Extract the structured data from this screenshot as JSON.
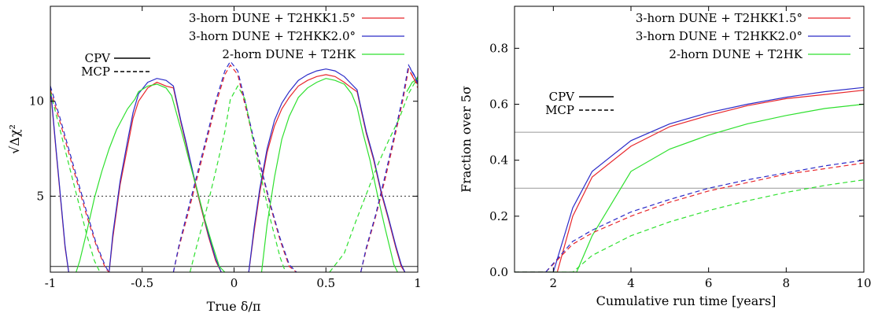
{
  "chart_data": [
    {
      "type": "line",
      "xlabel": "True δ/π",
      "ylabel": "√Δχ²",
      "xlim": [
        -1,
        1
      ],
      "ylim": [
        1,
        15
      ],
      "xticks": [
        "-1",
        "-0.5",
        "0",
        "0.5",
        "1"
      ],
      "yticks": [
        "5",
        "10"
      ],
      "grid": false,
      "legend_placement": "top-right",
      "style_key": {
        "solid": "CPV",
        "dashed": "MCP"
      },
      "reference_lines": [
        {
          "y": 5,
          "style": "dotted"
        },
        {
          "y": 1.3,
          "style": "solid"
        }
      ],
      "series": [
        {
          "name": "3-horn DUNE + T2HKK1.5°",
          "color": "#e8262b",
          "style": "solid",
          "x": [
            -1,
            -0.97,
            -0.94,
            -0.92,
            -0.9,
            null,
            -0.68,
            -0.66,
            -0.62,
            -0.58,
            -0.55,
            -0.52,
            -0.47,
            -0.42,
            -0.37,
            -0.33,
            -0.31,
            -0.29,
            -0.26,
            -0.22,
            -0.18,
            -0.14,
            -0.1,
            -0.07,
            null,
            0.08,
            0.11,
            0.14,
            0.18,
            0.22,
            0.26,
            0.3,
            0.35,
            0.4,
            0.45,
            0.5,
            0.55,
            0.6,
            0.64,
            0.67,
            0.69,
            0.72,
            0.76,
            0.8,
            0.84,
            0.88,
            0.91,
            0.93,
            null,
            0.96,
            0.99,
            1
          ],
          "y": [
            10.7,
            7.5,
            4.4,
            2.3,
            1,
            null,
            1,
            2.8,
            5.6,
            7.6,
            9.1,
            10.0,
            10.7,
            11.0,
            10.8,
            10.7,
            9.8,
            8.9,
            7.7,
            6.0,
            4.4,
            2.9,
            1.6,
            1,
            null,
            1,
            3.2,
            5.2,
            7.3,
            8.7,
            9.6,
            10.2,
            10.8,
            11.1,
            11.3,
            11.4,
            11.3,
            11.0,
            10.7,
            10.5,
            9.6,
            8.3,
            6.9,
            5.2,
            3.8,
            2.3,
            1.3,
            1,
            null,
            11.5,
            11.0,
            10.9
          ]
        },
        {
          "name": "3-horn DUNE + T2HKK2.0°",
          "color": "#2b2bc8",
          "style": "solid",
          "x": [
            -1,
            -0.97,
            -0.94,
            -0.92,
            -0.9,
            null,
            -0.68,
            -0.66,
            -0.62,
            -0.58,
            -0.55,
            -0.52,
            -0.47,
            -0.42,
            -0.37,
            -0.33,
            -0.31,
            -0.29,
            -0.26,
            -0.22,
            -0.18,
            -0.14,
            -0.1,
            -0.07,
            null,
            0.08,
            0.11,
            0.14,
            0.18,
            0.22,
            0.26,
            0.3,
            0.35,
            0.4,
            0.45,
            0.5,
            0.55,
            0.6,
            0.64,
            0.67,
            0.69,
            0.72,
            0.76,
            0.8,
            0.84,
            0.88,
            0.91,
            0.93,
            null,
            0.96,
            0.99,
            1
          ],
          "y": [
            10.8,
            7.6,
            4.5,
            2.4,
            1,
            null,
            1,
            3.0,
            5.8,
            7.9,
            9.4,
            10.4,
            11.0,
            11.2,
            11.1,
            10.8,
            9.9,
            9.0,
            7.8,
            6.1,
            4.5,
            3.0,
            1.7,
            1,
            null,
            1,
            3.4,
            5.4,
            7.5,
            9.0,
            9.9,
            10.5,
            11.1,
            11.4,
            11.6,
            11.7,
            11.6,
            11.3,
            10.9,
            10.6,
            9.7,
            8.4,
            7.0,
            5.3,
            3.9,
            2.4,
            1.4,
            1,
            null,
            11.7,
            11.2,
            11.0
          ]
        },
        {
          "name": "2-horn DUNE + T2HK",
          "color": "#2ee02e",
          "style": "solid",
          "x": [
            -0.86,
            -0.84,
            -0.8,
            -0.76,
            -0.72,
            -0.68,
            -0.64,
            -0.58,
            -0.54,
            -0.52,
            -0.47,
            -0.42,
            -0.37,
            -0.34,
            -0.32,
            -0.28,
            -0.24,
            -0.2,
            -0.16,
            -0.12,
            -0.08,
            -0.05,
            null,
            0.15,
            0.18,
            0.22,
            0.26,
            0.3,
            0.35,
            0.4,
            0.45,
            0.5,
            0.55,
            0.6,
            0.64,
            0.67,
            0.7,
            0.74,
            0.78,
            0.82,
            0.85,
            0.87,
            0.89,
            null,
            0.94,
            0.97,
            1
          ],
          "y": [
            1,
            1.6,
            3.2,
            4.9,
            6.3,
            7.5,
            8.5,
            9.6,
            10.1,
            10.5,
            10.8,
            10.9,
            10.7,
            10.3,
            9.6,
            8.2,
            6.7,
            5.3,
            3.8,
            2.5,
            1.3,
            1,
            null,
            1,
            3.5,
            6.0,
            8.0,
            9.2,
            10.2,
            10.7,
            11.0,
            11.2,
            11.1,
            10.9,
            10.4,
            9.7,
            8.4,
            6.9,
            5.1,
            3.4,
            2.2,
            1.4,
            1,
            null,
            10.5,
            11.0,
            11.2
          ]
        },
        {
          "name": "3-horn DUNE + T2HKK1.5°",
          "color": "#e8262b",
          "style": "dashed",
          "x": [
            -1,
            -0.95,
            -0.9,
            -0.85,
            -0.8,
            -0.75,
            -0.7,
            -0.68,
            null,
            -0.33,
            -0.3,
            -0.25,
            -0.2,
            -0.15,
            -0.1,
            -0.05,
            -0.02,
            0.02,
            0.06,
            0.1,
            0.15,
            0.2,
            0.25,
            0.3,
            0.34,
            null,
            0.69,
            0.72,
            0.77,
            0.82,
            0.87,
            0.92,
            0.95,
            0.98,
            1
          ],
          "y": [
            10.6,
            9.0,
            7.3,
            5.6,
            3.9,
            2.4,
            1.2,
            1,
            null,
            1,
            2.3,
            4.1,
            6.0,
            7.9,
            9.8,
            11.4,
            11.9,
            11.4,
            9.8,
            8.2,
            6.3,
            4.4,
            2.7,
            1.3,
            1,
            null,
            1,
            2.2,
            3.9,
            5.8,
            7.9,
            10.1,
            11.7,
            11.2,
            10.7
          ]
        },
        {
          "name": "3-horn DUNE + T2HKK2.0°",
          "color": "#2b2bc8",
          "style": "dashed",
          "x": [
            -1,
            -0.95,
            -0.9,
            -0.85,
            -0.8,
            -0.75,
            -0.7,
            -0.68,
            null,
            -0.33,
            -0.3,
            -0.25,
            -0.2,
            -0.15,
            -0.1,
            -0.05,
            -0.02,
            0.02,
            0.06,
            0.1,
            0.15,
            0.2,
            0.25,
            0.3,
            0.34,
            null,
            0.69,
            0.72,
            0.77,
            0.82,
            0.87,
            0.92,
            0.95,
            0.98,
            1
          ],
          "y": [
            10.8,
            9.2,
            7.5,
            5.8,
            4.1,
            2.5,
            1.3,
            1,
            null,
            1,
            2.4,
            4.3,
            6.2,
            8.1,
            10.0,
            11.6,
            12.1,
            11.6,
            10.0,
            8.3,
            6.4,
            4.5,
            2.8,
            1.4,
            1,
            null,
            1,
            2.3,
            4.0,
            6.0,
            8.1,
            10.3,
            11.9,
            11.4,
            10.9
          ]
        },
        {
          "name": "2-horn DUNE + T2HK",
          "color": "#2ee02e",
          "style": "dashed",
          "x": [
            -1,
            -0.95,
            -0.9,
            -0.85,
            -0.8,
            -0.76,
            -0.73,
            null,
            -0.24,
            -0.2,
            -0.15,
            -0.1,
            -0.05,
            -0.02,
            0.02,
            0.06,
            0.1,
            0.15,
            0.2,
            0.25,
            0.28,
            null,
            0.52,
            0.56,
            0.6,
            0.66,
            0.72,
            0.78,
            0.84,
            0.9,
            0.95,
            0.99,
            1
          ],
          "y": [
            10.5,
            8.6,
            6.7,
            4.8,
            2.9,
            1.6,
            1,
            null,
            1,
            2.5,
            4.3,
            6.3,
            8.4,
            10.1,
            10.8,
            10.1,
            8.1,
            5.9,
            3.7,
            1.8,
            1,
            null,
            1,
            1.5,
            2.0,
            3.6,
            5.1,
            6.6,
            7.9,
            9.1,
            10.4,
            11.1,
            11.3
          ]
        }
      ]
    },
    {
      "type": "line",
      "xlabel": "Cumulative run time [years]",
      "ylabel": "Fraction over 5σ",
      "xlim": [
        1,
        10
      ],
      "ylim": [
        0,
        0.95
      ],
      "xticks": [
        "2",
        "4",
        "6",
        "8",
        "10"
      ],
      "yticks": [
        "0.0",
        "0.2",
        "0.4",
        "0.6",
        "0.8"
      ],
      "grid": false,
      "legend_placement": "top-right",
      "style_key": {
        "solid": "CPV",
        "dashed": "MCP"
      },
      "reference_lines": [
        {
          "y": 0.5,
          "style": "solid"
        },
        {
          "y": 0.3,
          "style": "solid"
        }
      ],
      "series": [
        {
          "name": "3-horn DUNE + T2HKK1.5°",
          "color": "#e8262b",
          "style": "solid",
          "x": [
            1,
            2.1,
            2.5,
            3,
            4,
            5,
            6,
            7,
            8,
            9,
            10
          ],
          "y": [
            0,
            0,
            0.2,
            0.34,
            0.45,
            0.52,
            0.56,
            0.595,
            0.62,
            0.635,
            0.65
          ]
        },
        {
          "name": "3-horn DUNE + T2HKK2.0°",
          "color": "#2b2bc8",
          "style": "solid",
          "x": [
            1,
            2.0,
            2.5,
            3,
            4,
            5,
            6,
            7,
            8,
            9,
            10
          ],
          "y": [
            0,
            0,
            0.23,
            0.36,
            0.47,
            0.53,
            0.57,
            0.6,
            0.625,
            0.645,
            0.66
          ]
        },
        {
          "name": "2-horn DUNE + T2HK",
          "color": "#2ee02e",
          "style": "solid",
          "x": [
            1,
            2.6,
            3,
            4,
            5,
            6,
            7,
            8,
            9,
            10
          ],
          "y": [
            0,
            0,
            0.13,
            0.36,
            0.44,
            0.49,
            0.53,
            0.56,
            0.585,
            0.6
          ]
        },
        {
          "name": "3-horn DUNE + T2HKK1.5°",
          "color": "#e8262b",
          "style": "dashed",
          "x": [
            1,
            1.8,
            2.5,
            3,
            4,
            5,
            6,
            7,
            8,
            9,
            10
          ],
          "y": [
            0,
            0,
            0.1,
            0.14,
            0.2,
            0.25,
            0.29,
            0.32,
            0.35,
            0.37,
            0.39
          ]
        },
        {
          "name": "3-horn DUNE + T2HKK2.0°",
          "color": "#2b2bc8",
          "style": "dashed",
          "x": [
            1,
            1.8,
            2.5,
            3,
            4,
            5,
            6,
            7,
            8,
            9,
            10
          ],
          "y": [
            0,
            0,
            0.11,
            0.15,
            0.215,
            0.26,
            0.3,
            0.33,
            0.355,
            0.38,
            0.4
          ]
        },
        {
          "name": "2-horn DUNE + T2HK",
          "color": "#2ee02e",
          "style": "dashed",
          "x": [
            1,
            2.5,
            3,
            4,
            5,
            6,
            7,
            8,
            9,
            10
          ],
          "y": [
            0,
            0,
            0.06,
            0.13,
            0.18,
            0.22,
            0.255,
            0.285,
            0.31,
            0.33
          ]
        }
      ]
    }
  ]
}
